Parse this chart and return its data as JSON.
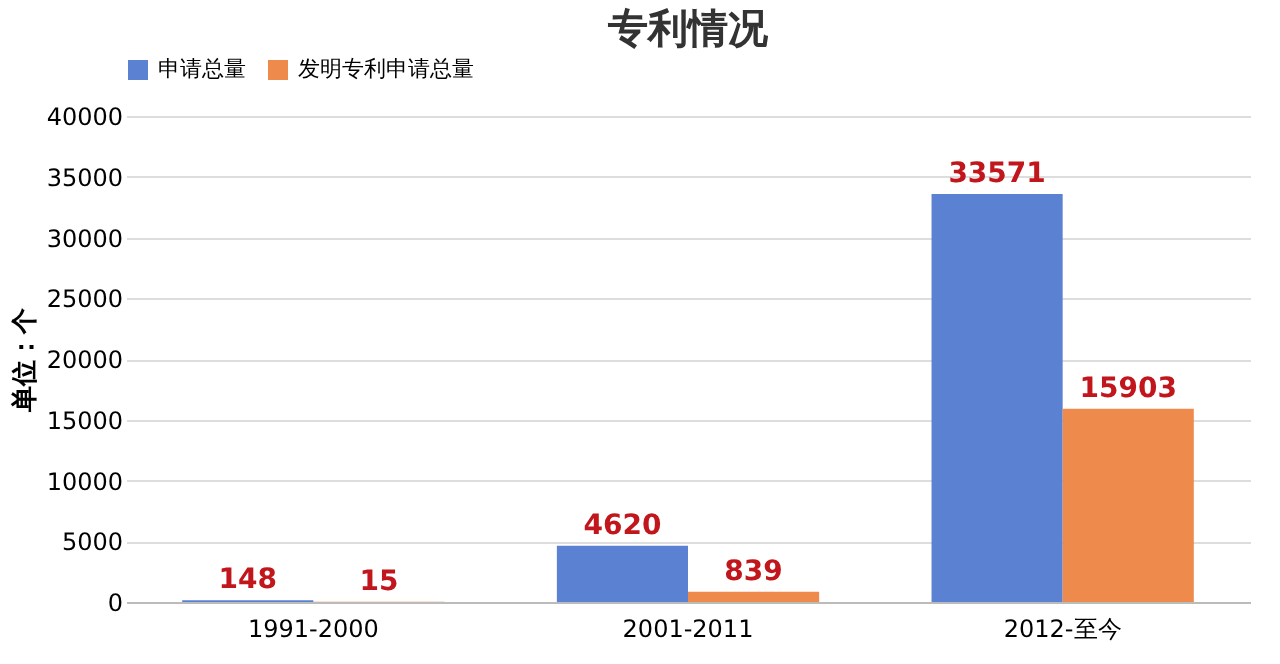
{
  "chart_data": {
    "type": "bar",
    "title": "专利情况",
    "ylabel": "单位：个",
    "categories": [
      "1991-2000",
      "2001-2011",
      "2012-至今"
    ],
    "series": [
      {
        "name": "申请总量",
        "color": "#5b82d2",
        "values": [
          148,
          4620,
          33571
        ]
      },
      {
        "name": "发明专利申请总量",
        "color": "#ed8a4c",
        "values": [
          15,
          839,
          15903
        ]
      }
    ],
    "ylim": [
      0,
      40000
    ],
    "yticks": [
      0,
      5000,
      10000,
      15000,
      20000,
      25000,
      30000,
      35000,
      40000
    ],
    "grid": "y",
    "legend": "top",
    "data_labels": true
  }
}
